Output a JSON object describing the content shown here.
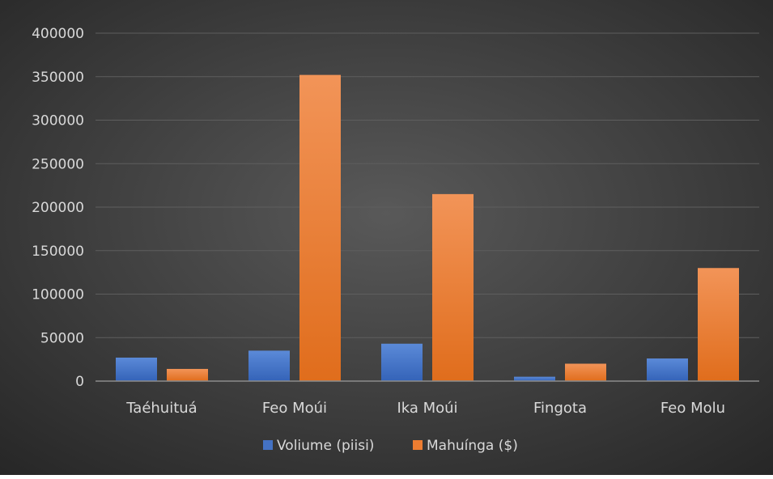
{
  "chart_data": {
    "type": "bar",
    "categories": [
      "Taéhuituá",
      "Feo Moúi",
      "Ika Moúi",
      "Fingota",
      "Feo Molu"
    ],
    "series": [
      {
        "name": "Voliume (piisi)",
        "values": [
          27000,
          35000,
          43000,
          5000,
          26000
        ],
        "color": "#4472c4"
      },
      {
        "name": "Mahuínga ($)",
        "values": [
          14000,
          352000,
          215000,
          20000,
          130000
        ],
        "color": "#ed7d31"
      }
    ],
    "title": "",
    "xlabel": "",
    "ylabel": "",
    "ylim": [
      0,
      400000
    ],
    "yticks": [
      0,
      50000,
      100000,
      150000,
      200000,
      250000,
      300000,
      350000,
      400000
    ],
    "grid": true,
    "legend_position": "bottom",
    "background": "#404040"
  }
}
